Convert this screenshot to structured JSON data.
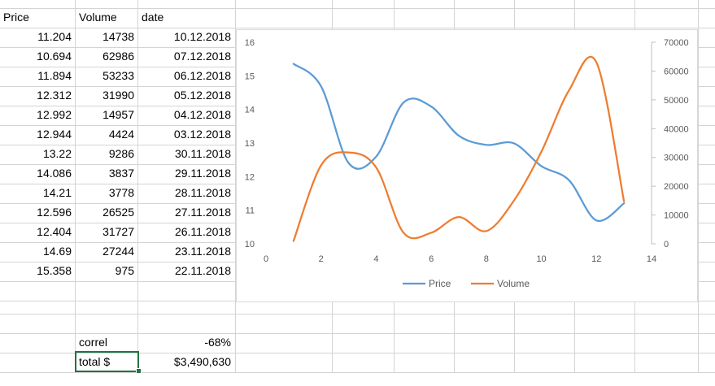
{
  "headers": {
    "price": "Price",
    "volume": "Volume",
    "date": "date"
  },
  "rows": [
    {
      "price": "11.204",
      "volume": "14738",
      "date": "10.12.2018"
    },
    {
      "price": "10.694",
      "volume": "62986",
      "date": "07.12.2018"
    },
    {
      "price": "11.894",
      "volume": "53233",
      "date": "06.12.2018"
    },
    {
      "price": "12.312",
      "volume": "31990",
      "date": "05.12.2018"
    },
    {
      "price": "12.992",
      "volume": "14957",
      "date": "04.12.2018"
    },
    {
      "price": "12.944",
      "volume": "4424",
      "date": "03.12.2018"
    },
    {
      "price": "13.22",
      "volume": "9286",
      "date": "30.11.2018"
    },
    {
      "price": "14.086",
      "volume": "3837",
      "date": "29.11.2018"
    },
    {
      "price": "14.21",
      "volume": "3778",
      "date": "28.11.2018"
    },
    {
      "price": "12.596",
      "volume": "26525",
      "date": "27.11.2018"
    },
    {
      "price": "12.404",
      "volume": "31727",
      "date": "26.11.2018"
    },
    {
      "price": "14.69",
      "volume": "27244",
      "date": "23.11.2018"
    },
    {
      "price": "15.358",
      "volume": "975",
      "date": "22.11.2018"
    }
  ],
  "summary": {
    "correl_label": "correl",
    "correl_value": "-68%",
    "total_label": "total $",
    "total_value": "$3,490,630"
  },
  "colors": {
    "price": "#5b9bd5",
    "volume": "#ed7d31",
    "selection": "#217346"
  },
  "chart_data": {
    "type": "line",
    "x": [
      1,
      2,
      3,
      4,
      5,
      6,
      7,
      8,
      9,
      10,
      11,
      12,
      13
    ],
    "series": [
      {
        "name": "Price",
        "axis": "left",
        "values": [
          15.358,
          14.69,
          12.404,
          12.596,
          14.21,
          14.086,
          13.22,
          12.944,
          12.992,
          12.312,
          11.894,
          10.694,
          11.204
        ]
      },
      {
        "name": "Volume",
        "axis": "right",
        "values": [
          975,
          27244,
          31727,
          26525,
          3778,
          3837,
          9286,
          4424,
          14957,
          31990,
          53233,
          62986,
          14738
        ]
      }
    ],
    "smooth": true,
    "xlim": [
      0,
      14
    ],
    "xticks": [
      "0",
      "2",
      "4",
      "6",
      "8",
      "10",
      "12",
      "14"
    ],
    "ylim_left": [
      10,
      16
    ],
    "yticks_left": [
      "10",
      "11",
      "12",
      "13",
      "14",
      "15",
      "16"
    ],
    "ylim_right": [
      0,
      70000
    ],
    "yticks_right": [
      "0",
      "10000",
      "20000",
      "30000",
      "40000",
      "50000",
      "60000",
      "70000"
    ],
    "grid": false,
    "legend": "bottom"
  }
}
